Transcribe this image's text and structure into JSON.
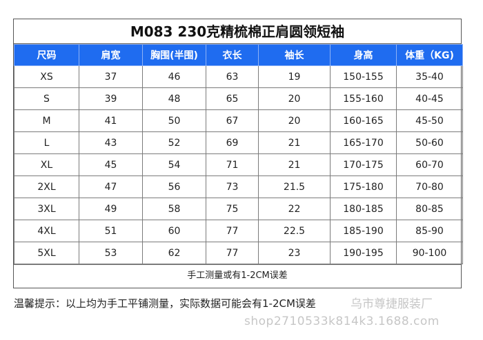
{
  "title": "M083   230克精梳棉正肩圆领短袖",
  "columns": [
    "尺码",
    "肩宽",
    "胸围(半围)",
    "衣长",
    "袖长",
    "身高",
    "体重（KG)"
  ],
  "rows": [
    [
      "XS",
      "37",
      "46",
      "63",
      "19",
      "150-155",
      "35-40"
    ],
    [
      "S",
      "39",
      "48",
      "65",
      "20",
      "155-160",
      "40-45"
    ],
    [
      "M",
      "41",
      "50",
      "67",
      "20",
      "160-165",
      "45-50"
    ],
    [
      "L",
      "43",
      "52",
      "69",
      "21",
      "165-170",
      "50-60"
    ],
    [
      "XL",
      "45",
      "54",
      "71",
      "21",
      "170-175",
      "60-70"
    ],
    [
      "2XL",
      "47",
      "56",
      "73",
      "21.5",
      "175-180",
      "70-80"
    ],
    [
      "3XL",
      "49",
      "58",
      "75",
      "22",
      "180-185",
      "80-85"
    ],
    [
      "4XL",
      "51",
      "60",
      "77",
      "22.5",
      "185-190",
      "85-90"
    ],
    [
      "5XL",
      "53",
      "62",
      "77",
      "23",
      "190-195",
      "90-100"
    ]
  ],
  "note": "手工测量或有1-2CM误差",
  "footer": "温馨提示：以上均为手工平铺测量，实际数据可能会有1-2CM误差",
  "watermark_shop": "乌市尊捷服装厂",
  "watermark_url": "shop2710533k814k3.1688.com",
  "colors": {
    "header_bg": "#1f6cf0",
    "header_text": "#ffffff"
  }
}
